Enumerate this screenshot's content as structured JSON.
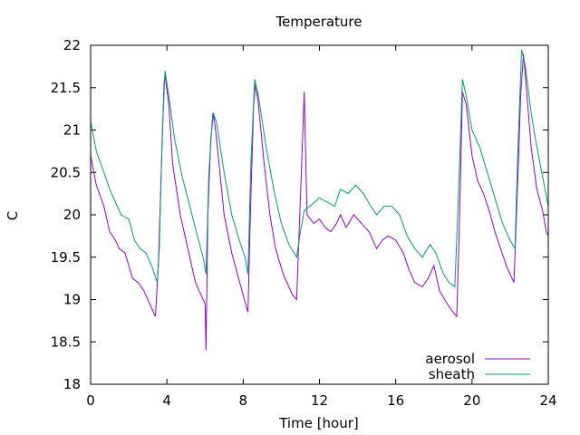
{
  "chart_data": {
    "type": "line",
    "title": "Temperature",
    "xlabel": "Time [hour]",
    "ylabel": "C",
    "xlim": [
      0,
      24
    ],
    "ylim": [
      18,
      22
    ],
    "xticks": [
      0,
      4,
      8,
      12,
      16,
      20,
      24
    ],
    "xtick_labels": [
      "0",
      "4",
      "8",
      "12",
      "16",
      "20",
      "24"
    ],
    "yticks": [
      18,
      18.5,
      19,
      19.5,
      20,
      20.5,
      21,
      21.5,
      22
    ],
    "ytick_labels": [
      "18",
      "18.5",
      "19",
      "19.5",
      "20",
      "20.5",
      "21",
      "21.5",
      "22"
    ],
    "grid": false,
    "legend_position": "bottom-right",
    "series": [
      {
        "name": "aerosol",
        "color": "#9400d3",
        "points": [
          [
            0.0,
            20.7
          ],
          [
            0.3,
            20.35
          ],
          [
            0.7,
            20.1
          ],
          [
            1.0,
            19.8
          ],
          [
            1.3,
            19.7
          ],
          [
            1.5,
            19.6
          ],
          [
            1.8,
            19.55
          ],
          [
            2.0,
            19.4
          ],
          [
            2.2,
            19.25
          ],
          [
            2.5,
            19.2
          ],
          [
            2.8,
            19.1
          ],
          [
            3.1,
            18.95
          ],
          [
            3.4,
            18.8
          ],
          [
            3.55,
            19.4
          ],
          [
            3.7,
            20.5
          ],
          [
            3.85,
            21.55
          ],
          [
            3.9,
            21.65
          ],
          [
            4.1,
            21.3
          ],
          [
            4.3,
            20.6
          ],
          [
            4.7,
            20.0
          ],
          [
            5.1,
            19.6
          ],
          [
            5.5,
            19.2
          ],
          [
            5.8,
            19.05
          ],
          [
            6.0,
            18.95
          ],
          [
            6.05,
            18.4
          ],
          [
            6.15,
            20.0
          ],
          [
            6.3,
            20.9
          ],
          [
            6.45,
            21.2
          ],
          [
            6.6,
            20.9
          ],
          [
            7.0,
            20.0
          ],
          [
            7.4,
            19.55
          ],
          [
            7.7,
            19.3
          ],
          [
            8.0,
            19.05
          ],
          [
            8.25,
            18.85
          ],
          [
            8.4,
            20.2
          ],
          [
            8.55,
            21.3
          ],
          [
            8.65,
            21.55
          ],
          [
            8.8,
            21.3
          ],
          [
            9.1,
            20.6
          ],
          [
            9.4,
            20.0
          ],
          [
            9.7,
            19.6
          ],
          [
            10.1,
            19.3
          ],
          [
            10.4,
            19.15
          ],
          [
            10.6,
            19.05
          ],
          [
            10.8,
            19.0
          ],
          [
            11.0,
            20.2
          ],
          [
            11.2,
            21.45
          ],
          [
            11.35,
            20.0
          ],
          [
            11.7,
            19.9
          ],
          [
            12.0,
            19.95
          ],
          [
            12.3,
            19.85
          ],
          [
            12.6,
            19.8
          ],
          [
            12.9,
            19.9
          ],
          [
            13.1,
            20.0
          ],
          [
            13.4,
            19.85
          ],
          [
            13.8,
            20.0
          ],
          [
            14.2,
            19.9
          ],
          [
            14.6,
            19.8
          ],
          [
            15.0,
            19.6
          ],
          [
            15.3,
            19.7
          ],
          [
            15.6,
            19.75
          ],
          [
            16.0,
            19.7
          ],
          [
            16.4,
            19.55
          ],
          [
            16.7,
            19.35
          ],
          [
            17.0,
            19.2
          ],
          [
            17.4,
            19.15
          ],
          [
            17.7,
            19.25
          ],
          [
            18.0,
            19.4
          ],
          [
            18.3,
            19.1
          ],
          [
            18.7,
            18.95
          ],
          [
            19.0,
            18.85
          ],
          [
            19.2,
            18.8
          ],
          [
            19.35,
            20.0
          ],
          [
            19.5,
            21.45
          ],
          [
            19.7,
            21.3
          ],
          [
            20.0,
            20.7
          ],
          [
            20.3,
            20.4
          ],
          [
            20.6,
            20.25
          ],
          [
            20.9,
            20.05
          ],
          [
            21.2,
            19.8
          ],
          [
            21.5,
            19.6
          ],
          [
            21.8,
            19.4
          ],
          [
            22.0,
            19.3
          ],
          [
            22.2,
            19.2
          ],
          [
            22.4,
            20.4
          ],
          [
            22.55,
            21.4
          ],
          [
            22.7,
            21.9
          ],
          [
            22.85,
            21.5
          ],
          [
            23.1,
            20.8
          ],
          [
            23.4,
            20.3
          ],
          [
            23.7,
            20.05
          ],
          [
            23.9,
            19.8
          ],
          [
            24.0,
            19.75
          ]
        ]
      },
      {
        "name": "sheath",
        "color": "#009e73",
        "points": [
          [
            0.0,
            21.1
          ],
          [
            0.3,
            20.75
          ],
          [
            0.7,
            20.5
          ],
          [
            1.0,
            20.3
          ],
          [
            1.3,
            20.15
          ],
          [
            1.6,
            20.0
          ],
          [
            2.0,
            19.95
          ],
          [
            2.3,
            19.7
          ],
          [
            2.6,
            19.6
          ],
          [
            2.9,
            19.55
          ],
          [
            3.2,
            19.4
          ],
          [
            3.5,
            19.2
          ],
          [
            3.6,
            19.6
          ],
          [
            3.75,
            20.9
          ],
          [
            3.9,
            21.7
          ],
          [
            4.1,
            21.4
          ],
          [
            4.4,
            20.9
          ],
          [
            4.8,
            20.45
          ],
          [
            5.2,
            20.1
          ],
          [
            5.6,
            19.75
          ],
          [
            5.9,
            19.5
          ],
          [
            6.05,
            19.3
          ],
          [
            6.2,
            20.5
          ],
          [
            6.4,
            21.2
          ],
          [
            6.6,
            21.1
          ],
          [
            7.0,
            20.5
          ],
          [
            7.4,
            20.0
          ],
          [
            7.8,
            19.7
          ],
          [
            8.1,
            19.5
          ],
          [
            8.25,
            19.3
          ],
          [
            8.4,
            20.6
          ],
          [
            8.6,
            21.6
          ],
          [
            8.8,
            21.4
          ],
          [
            9.2,
            20.8
          ],
          [
            9.6,
            20.3
          ],
          [
            10.0,
            19.9
          ],
          [
            10.4,
            19.65
          ],
          [
            10.8,
            19.5
          ],
          [
            11.0,
            19.8
          ],
          [
            11.2,
            20.05
          ],
          [
            11.5,
            20.1
          ],
          [
            12.0,
            20.2
          ],
          [
            12.4,
            20.15
          ],
          [
            12.8,
            20.1
          ],
          [
            13.1,
            20.3
          ],
          [
            13.5,
            20.25
          ],
          [
            13.9,
            20.35
          ],
          [
            14.3,
            20.25
          ],
          [
            14.7,
            20.1
          ],
          [
            15.0,
            20.0
          ],
          [
            15.4,
            20.1
          ],
          [
            15.8,
            20.1
          ],
          [
            16.2,
            20.0
          ],
          [
            16.6,
            19.75
          ],
          [
            17.0,
            19.6
          ],
          [
            17.4,
            19.5
          ],
          [
            17.8,
            19.65
          ],
          [
            18.1,
            19.55
          ],
          [
            18.5,
            19.3
          ],
          [
            18.8,
            19.2
          ],
          [
            19.1,
            19.15
          ],
          [
            19.3,
            20.3
          ],
          [
            19.5,
            21.6
          ],
          [
            19.7,
            21.4
          ],
          [
            20.0,
            21.0
          ],
          [
            20.4,
            20.8
          ],
          [
            20.8,
            20.5
          ],
          [
            21.2,
            20.2
          ],
          [
            21.6,
            19.9
          ],
          [
            22.0,
            19.7
          ],
          [
            22.25,
            19.6
          ],
          [
            22.4,
            20.7
          ],
          [
            22.6,
            21.95
          ],
          [
            22.8,
            21.75
          ],
          [
            23.1,
            21.2
          ],
          [
            23.4,
            20.8
          ],
          [
            23.7,
            20.45
          ],
          [
            24.0,
            20.1
          ],
          [
            24.0,
            20.8
          ]
        ]
      }
    ]
  }
}
